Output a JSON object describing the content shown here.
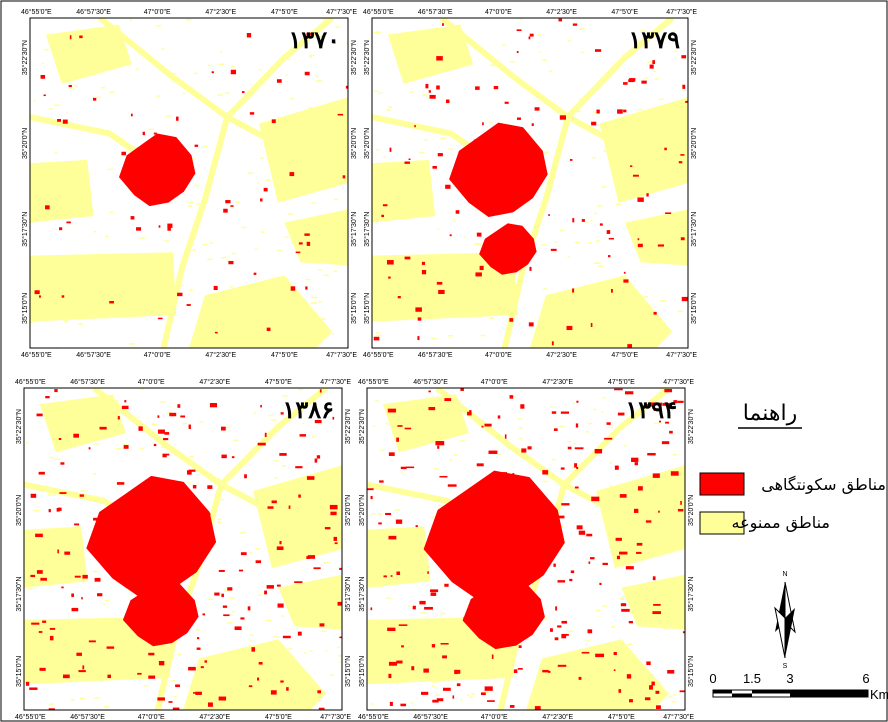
{
  "grid": {
    "lon_labels": [
      "46°55'0\"E",
      "46°57'30\"E",
      "47°0'0\"E",
      "47°2'30\"E",
      "47°5'0\"E",
      "47°7'30\"E"
    ],
    "lat_labels": [
      "35°22'30\"N",
      "35°20'0\"N",
      "35°17'30\"N",
      "35°15'0\"N"
    ]
  },
  "panels": [
    {
      "year": "۱۳۷۰"
    },
    {
      "year": "۱۳۷۹"
    },
    {
      "year": "۱۳۸۶"
    },
    {
      "year": "۱۳۹۴"
    }
  ],
  "legend": {
    "title": "راهنما",
    "items": [
      "مناطق سکونتگاهی",
      "مناطق ممنوعه"
    ]
  },
  "north_arrow": {
    "north": "N",
    "south": "S"
  },
  "scale_bar": {
    "labels": [
      "0",
      "1.5",
      "3",
      "6"
    ],
    "unit": "Km"
  }
}
